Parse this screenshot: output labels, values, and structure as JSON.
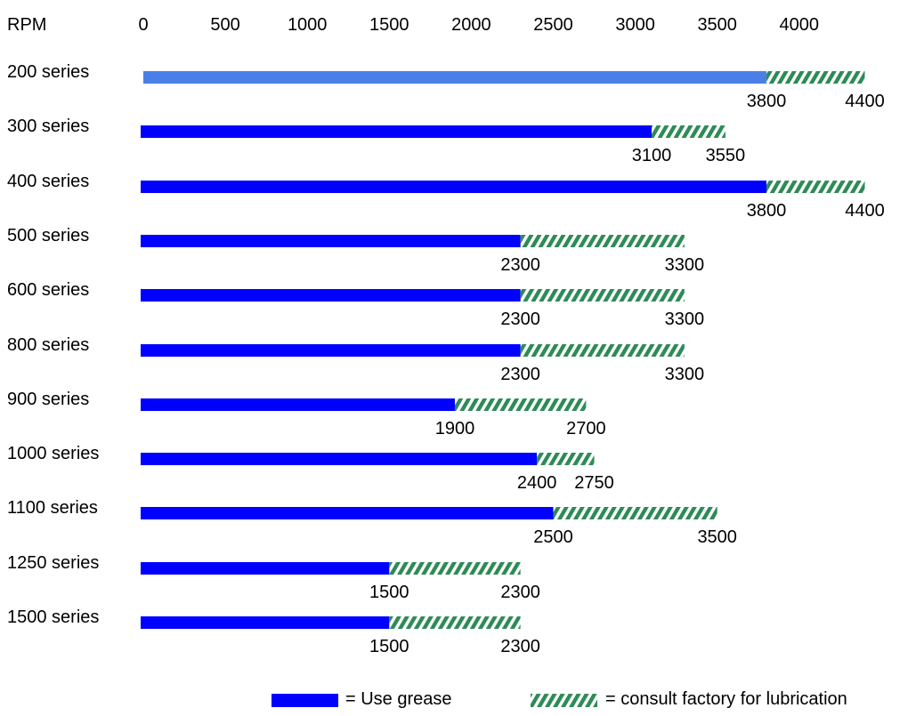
{
  "chart_data": {
    "type": "bar",
    "orientation": "horizontal",
    "stacked": true,
    "xlabel": "RPM",
    "xticks": [
      0,
      500,
      1000,
      1500,
      2000,
      2500,
      3000,
      3500,
      4000
    ],
    "categories": [
      "200 series",
      "300 series",
      "400 series",
      "500 series",
      "600 series",
      "800 series",
      "900 series",
      "1000 series",
      "1100 series",
      "1250 series",
      "1500 series"
    ],
    "series": [
      {
        "name": "= Use grease",
        "values": [
          3800,
          3100,
          3800,
          2300,
          2300,
          2300,
          1900,
          2400,
          2500,
          1500,
          1500
        ],
        "color": "#0000ff"
      },
      {
        "name": "= consult factory for lubrication",
        "range_end": [
          4400,
          3550,
          4400,
          3300,
          3300,
          3300,
          2700,
          2750,
          3500,
          2300,
          2300
        ],
        "color": "#2e8b57",
        "pattern": "diagonal-hatch"
      }
    ],
    "first_bar_color": "#4a7fe8",
    "value_labels": [
      [
        "3800",
        "4400"
      ],
      [
        "3100",
        "3550"
      ],
      [
        "3800",
        "4400"
      ],
      [
        "2300",
        "3300"
      ],
      [
        "2300",
        "3300"
      ],
      [
        "2300",
        "3300"
      ],
      [
        "1900",
        "2700"
      ],
      [
        "2400",
        "2750"
      ],
      [
        "2500",
        "3500"
      ],
      [
        "1500",
        "2300"
      ],
      [
        "1500",
        "2300"
      ]
    ],
    "legend_position": "bottom-right",
    "grid": false
  }
}
